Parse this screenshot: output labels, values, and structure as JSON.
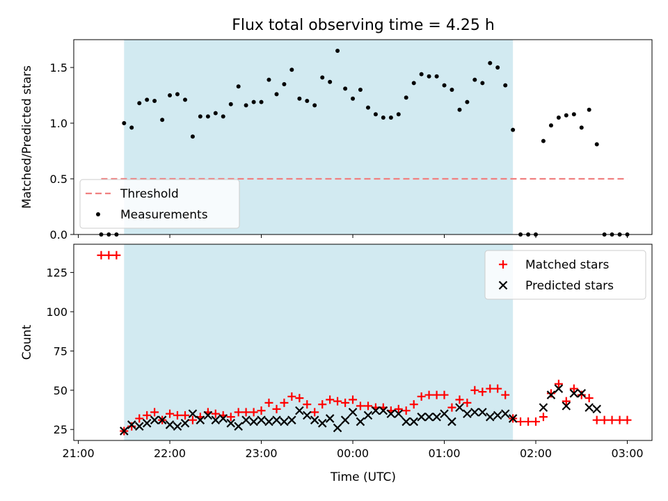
{
  "chart_data": {
    "title": "Flux total observing time = 4.25 h",
    "xlabel": "Time (UTC)",
    "x_tick_labels": [
      "21:00",
      "22:00",
      "23:00",
      "00:00",
      "01:00",
      "02:00",
      "03:00"
    ],
    "x_range_hours": [
      20.95,
      27.27
    ],
    "x_tick_hours": [
      21,
      22,
      23,
      24,
      25,
      26,
      27
    ],
    "observing_window_hours": [
      21.5,
      25.75
    ],
    "window_color": "#add8e6",
    "panels": [
      {
        "type": "scatter",
        "ylabel": "Matched/Predicted stars",
        "ylim": [
          0,
          1.75
        ],
        "y_ticks": [
          0.0,
          0.5,
          1.0,
          1.5
        ],
        "y_tick_labels": [
          "0.0",
          "0.5",
          "1.0",
          "1.5"
        ],
        "legend_position": "lower-left",
        "threshold": {
          "name": "Threshold",
          "value": 0.5,
          "x_range": [
            21.25,
            27.0
          ],
          "color": "#f08080",
          "style": "dashed"
        },
        "series": [
          {
            "name": "Measurements",
            "color": "#000000",
            "marker": "dot",
            "points": [
              [
                21.25,
                0
              ],
              [
                21.333,
                0
              ],
              [
                21.417,
                0
              ],
              [
                21.5,
                1.0
              ],
              [
                21.583,
                0.96
              ],
              [
                21.667,
                1.18
              ],
              [
                21.75,
                1.21
              ],
              [
                21.833,
                1.2
              ],
              [
                21.917,
                1.03
              ],
              [
                22.0,
                1.25
              ],
              [
                22.083,
                1.26
              ],
              [
                22.167,
                1.21
              ],
              [
                22.25,
                0.88
              ],
              [
                22.333,
                1.06
              ],
              [
                22.417,
                1.06
              ],
              [
                22.5,
                1.09
              ],
              [
                22.583,
                1.06
              ],
              [
                22.667,
                1.17
              ],
              [
                22.75,
                1.33
              ],
              [
                22.833,
                1.16
              ],
              [
                22.917,
                1.19
              ],
              [
                23.0,
                1.19
              ],
              [
                23.083,
                1.39
              ],
              [
                23.167,
                1.26
              ],
              [
                23.25,
                1.35
              ],
              [
                23.333,
                1.48
              ],
              [
                23.417,
                1.22
              ],
              [
                23.5,
                1.2
              ],
              [
                23.583,
                1.16
              ],
              [
                23.667,
                1.41
              ],
              [
                23.75,
                1.37
              ],
              [
                23.833,
                1.65
              ],
              [
                23.917,
                1.31
              ],
              [
                24.0,
                1.22
              ],
              [
                24.083,
                1.3
              ],
              [
                24.167,
                1.14
              ],
              [
                24.25,
                1.08
              ],
              [
                24.333,
                1.05
              ],
              [
                24.417,
                1.05
              ],
              [
                24.5,
                1.08
              ],
              [
                24.583,
                1.23
              ],
              [
                24.667,
                1.36
              ],
              [
                24.75,
                1.44
              ],
              [
                24.833,
                1.42
              ],
              [
                24.917,
                1.42
              ],
              [
                25.0,
                1.34
              ],
              [
                25.083,
                1.3
              ],
              [
                25.167,
                1.12
              ],
              [
                25.25,
                1.19
              ],
              [
                25.333,
                1.39
              ],
              [
                25.417,
                1.36
              ],
              [
                25.5,
                1.54
              ],
              [
                25.583,
                1.5
              ],
              [
                25.667,
                1.34
              ],
              [
                25.75,
                0.94
              ],
              [
                25.833,
                0
              ],
              [
                25.917,
                0
              ],
              [
                26.0,
                0
              ],
              [
                26.083,
                0.84
              ],
              [
                26.167,
                0.98
              ],
              [
                26.25,
                1.05
              ],
              [
                26.333,
                1.07
              ],
              [
                26.417,
                1.08
              ],
              [
                26.5,
                0.96
              ],
              [
                26.583,
                1.12
              ],
              [
                26.667,
                0.81
              ],
              [
                26.75,
                0
              ],
              [
                26.833,
                0
              ],
              [
                26.917,
                0
              ],
              [
                27.0,
                0
              ]
            ]
          }
        ]
      },
      {
        "type": "scatter",
        "ylabel": "Count",
        "ylim": [
          18,
          143
        ],
        "y_ticks": [
          25,
          50,
          75,
          100,
          125
        ],
        "y_tick_labels": [
          "25",
          "50",
          "75",
          "100",
          "125"
        ],
        "legend_position": "upper-right",
        "series": [
          {
            "name": "Matched stars",
            "color": "#ff0000",
            "marker": "plus",
            "points": [
              [
                21.25,
                136
              ],
              [
                21.333,
                136
              ],
              [
                21.417,
                136
              ],
              [
                21.5,
                24
              ],
              [
                21.583,
                27
              ],
              [
                21.667,
                32
              ],
              [
                21.75,
                34
              ],
              [
                21.833,
                36
              ],
              [
                21.917,
                31
              ],
              [
                22.0,
                35
              ],
              [
                22.083,
                34
              ],
              [
                22.167,
                34
              ],
              [
                22.25,
                31
              ],
              [
                22.333,
                33
              ],
              [
                22.417,
                36
              ],
              [
                22.5,
                35
              ],
              [
                22.583,
                34
              ],
              [
                22.667,
                33
              ],
              [
                22.75,
                36
              ],
              [
                22.833,
                36
              ],
              [
                22.917,
                36
              ],
              [
                23.0,
                37
              ],
              [
                23.083,
                42
              ],
              [
                23.167,
                38
              ],
              [
                23.25,
                42
              ],
              [
                23.333,
                46
              ],
              [
                23.417,
                45
              ],
              [
                23.5,
                41
              ],
              [
                23.583,
                36
              ],
              [
                23.667,
                41
              ],
              [
                23.75,
                44
              ],
              [
                23.833,
                43
              ],
              [
                23.917,
                42
              ],
              [
                24.0,
                44
              ],
              [
                24.083,
                40
              ],
              [
                24.167,
                40
              ],
              [
                24.25,
                39
              ],
              [
                24.333,
                39
              ],
              [
                24.417,
                37
              ],
              [
                24.5,
                38
              ],
              [
                24.583,
                37
              ],
              [
                24.667,
                41
              ],
              [
                24.75,
                46
              ],
              [
                24.833,
                47
              ],
              [
                24.917,
                47
              ],
              [
                25.0,
                47
              ],
              [
                25.083,
                39
              ],
              [
                25.167,
                44
              ],
              [
                25.25,
                42
              ],
              [
                25.333,
                50
              ],
              [
                25.417,
                49
              ],
              [
                25.5,
                51
              ],
              [
                25.583,
                51
              ],
              [
                25.667,
                47
              ],
              [
                25.75,
                32
              ],
              [
                25.833,
                30
              ],
              [
                25.917,
                30
              ],
              [
                26.0,
                30
              ],
              [
                26.083,
                33
              ],
              [
                26.167,
                48
              ],
              [
                26.25,
                54
              ],
              [
                26.333,
                43
              ],
              [
                26.417,
                51
              ],
              [
                26.5,
                47
              ],
              [
                26.583,
                45
              ],
              [
                26.667,
                31
              ],
              [
                26.75,
                31
              ],
              [
                26.833,
                31
              ],
              [
                26.917,
                31
              ],
              [
                27.0,
                31
              ]
            ]
          },
          {
            "name": "Predicted stars",
            "color": "#000000",
            "marker": "x",
            "points": [
              [
                21.5,
                24
              ],
              [
                21.583,
                28
              ],
              [
                21.667,
                27
              ],
              [
                21.75,
                29
              ],
              [
                21.833,
                31
              ],
              [
                21.917,
                31
              ],
              [
                22.0,
                28
              ],
              [
                22.083,
                27
              ],
              [
                22.167,
                29
              ],
              [
                22.25,
                35
              ],
              [
                22.333,
                31
              ],
              [
                22.417,
                34
              ],
              [
                22.5,
                31
              ],
              [
                22.583,
                32
              ],
              [
                22.667,
                29
              ],
              [
                22.75,
                27
              ],
              [
                22.833,
                31
              ],
              [
                22.917,
                30
              ],
              [
                23.0,
                31
              ],
              [
                23.083,
                30
              ],
              [
                23.167,
                31
              ],
              [
                23.25,
                30
              ],
              [
                23.333,
                31
              ],
              [
                23.417,
                37
              ],
              [
                23.5,
                34
              ],
              [
                23.583,
                31
              ],
              [
                23.667,
                29
              ],
              [
                23.75,
                32
              ],
              [
                23.833,
                26
              ],
              [
                23.917,
                31
              ],
              [
                24.0,
                36
              ],
              [
                24.083,
                30
              ],
              [
                24.167,
                34
              ],
              [
                24.25,
                37
              ],
              [
                24.333,
                37
              ],
              [
                24.417,
                35
              ],
              [
                24.5,
                35
              ],
              [
                24.583,
                30
              ],
              [
                24.667,
                30
              ],
              [
                24.75,
                33
              ],
              [
                24.833,
                33
              ],
              [
                24.917,
                33
              ],
              [
                25.0,
                35
              ],
              [
                25.083,
                30
              ],
              [
                25.167,
                39
              ],
              [
                25.25,
                35
              ],
              [
                25.333,
                36
              ],
              [
                25.417,
                36
              ],
              [
                25.5,
                33
              ],
              [
                25.583,
                34
              ],
              [
                25.667,
                35
              ],
              [
                25.75,
                32
              ],
              [
                26.083,
                39
              ],
              [
                26.167,
                47
              ],
              [
                26.25,
                51
              ],
              [
                26.333,
                40
              ],
              [
                26.417,
                48
              ],
              [
                26.5,
                48
              ],
              [
                26.583,
                39
              ],
              [
                26.667,
                38
              ]
            ]
          }
        ]
      }
    ]
  }
}
